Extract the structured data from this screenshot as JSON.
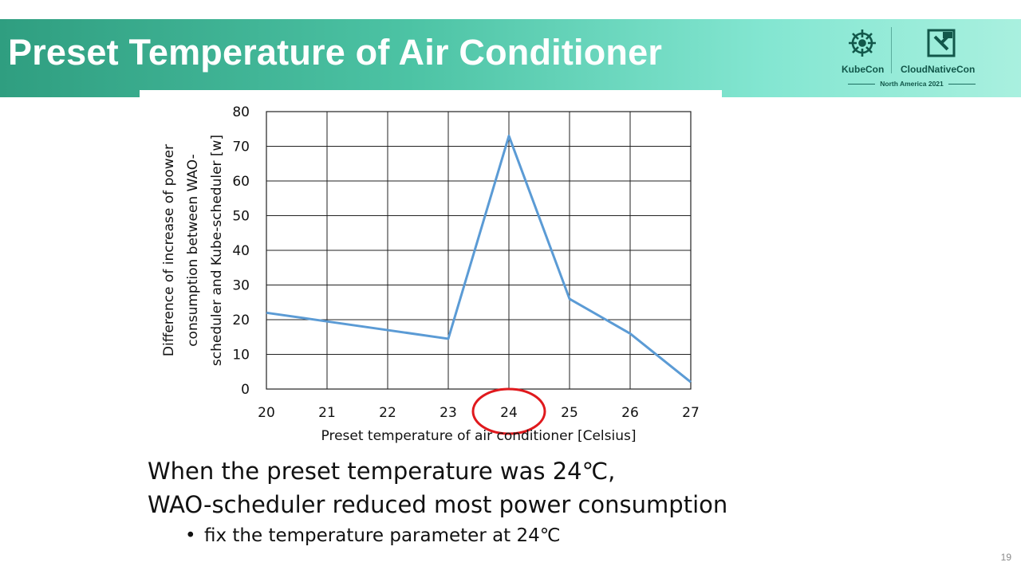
{
  "slide": {
    "title": "Preset Temperature of Air Conditioner",
    "body_lines": [
      "When the preset temperature was 24℃,",
      "WAO-scheduler reduced most power consumption"
    ],
    "bullets": [
      "fix the temperature parameter at 24℃"
    ],
    "page_number": "19"
  },
  "logos": {
    "left": "KubeCon",
    "right": "CloudNativeCon",
    "event": "North America 2021",
    "left_icon": "kubernetes-helm-icon",
    "right_icon": "cncf-icon",
    "text_color": "#12574a"
  },
  "colors": {
    "banner_start": "#2f9e80",
    "banner_end": "#a9f0df",
    "line": "#5b9bd5",
    "highlight_circle": "#e0191d"
  },
  "chart_data": {
    "type": "line",
    "xlabel": "Preset temperature of air conditioner [Celsius]",
    "ylabel_lines": [
      "Difference of increase of power",
      "consumption between WAO-",
      "scheduler and Kube-scheduler [w]"
    ],
    "x": [
      20,
      21,
      22,
      23,
      24,
      25,
      26,
      27
    ],
    "x_ticks": [
      "20",
      "21",
      "22",
      "23",
      "24",
      "25",
      "26",
      "27"
    ],
    "y": [
      22,
      19.5,
      17,
      14.5,
      73,
      26,
      16,
      2
    ],
    "ylim": [
      0,
      80
    ],
    "y_ticks": [
      "0",
      "10",
      "20",
      "30",
      "40",
      "50",
      "60",
      "70",
      "80"
    ],
    "grid": true,
    "highlight_x": 24
  }
}
